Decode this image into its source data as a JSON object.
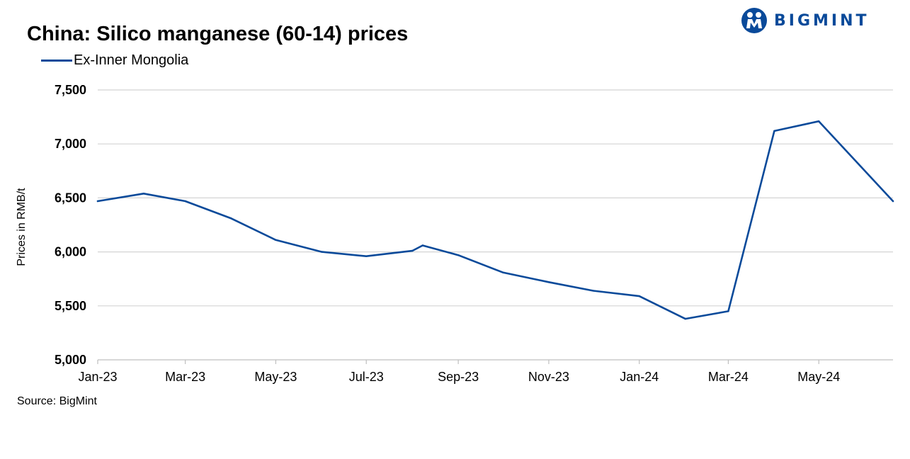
{
  "brand": {
    "logo_text": "BIGMINT",
    "logo_color": "#0a4a9a"
  },
  "footer": {
    "source": "Source: BigMint"
  },
  "chart_data": {
    "type": "line",
    "title": "China: Silico manganese (60-14) prices",
    "xlabel": "",
    "ylabel": "Prices in RMB/t",
    "ylim": [
      5000,
      7500
    ],
    "yticks": [
      5000,
      5500,
      6000,
      6500,
      7000,
      7500
    ],
    "ytick_labels": [
      "5,000",
      "5,500",
      "6,000",
      "6,500",
      "7,000",
      "7,500"
    ],
    "xlim": [
      "2023-01-01",
      "2024-06-20"
    ],
    "xticks": [
      "2023-01-01",
      "2023-03-01",
      "2023-05-01",
      "2023-07-01",
      "2023-09-01",
      "2023-11-01",
      "2024-01-01",
      "2024-03-01",
      "2024-05-01"
    ],
    "xtick_labels": [
      "Jan-23",
      "Mar-23",
      "May-23",
      "Jul-23",
      "Sep-23",
      "Nov-23",
      "Jan-24",
      "Mar-24",
      "May-24"
    ],
    "grid": true,
    "legend_position": "top-left",
    "series": [
      {
        "name": "Ex-Inner Mongolia",
        "color": "#0a4a9a",
        "x": [
          "2023-01-01",
          "2023-02-01",
          "2023-03-01",
          "2023-04-01",
          "2023-05-01",
          "2023-06-01",
          "2023-07-01",
          "2023-08-01",
          "2023-08-08",
          "2023-09-01",
          "2023-10-01",
          "2023-11-01",
          "2023-12-01",
          "2024-01-01",
          "2024-02-01",
          "2024-03-01",
          "2024-04-01",
          "2024-05-01",
          "2024-06-20"
        ],
        "values": [
          6470,
          6540,
          6470,
          6310,
          6110,
          6000,
          5960,
          6010,
          6060,
          5970,
          5810,
          5720,
          5640,
          5590,
          5380,
          5450,
          7120,
          7210,
          6470
        ]
      }
    ]
  }
}
